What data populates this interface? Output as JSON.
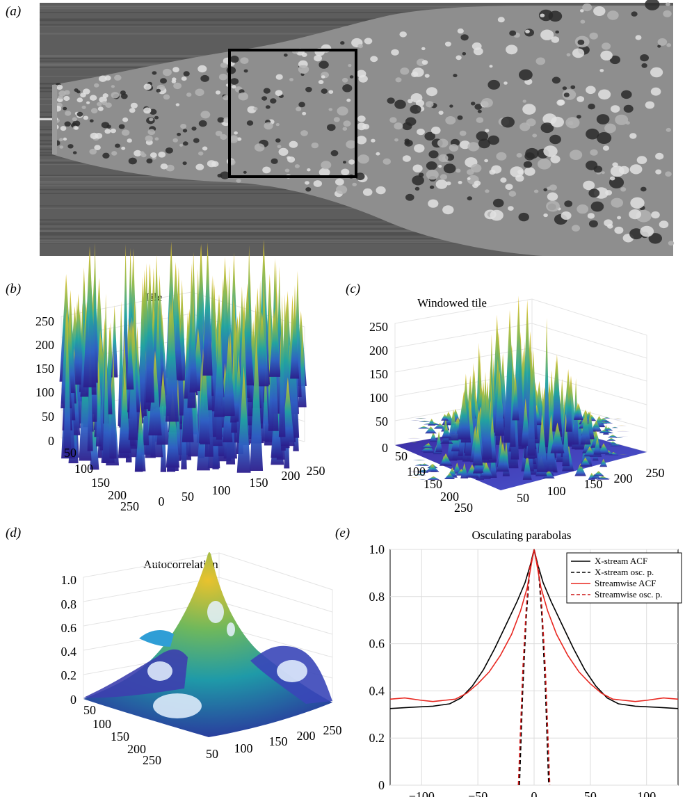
{
  "panels": {
    "a": {
      "label": "(a)"
    },
    "b": {
      "label": "(b)",
      "title": "Tile"
    },
    "c": {
      "label": "(c)",
      "title": "Windowed tile"
    },
    "d": {
      "label": "(d)",
      "title": "Autocorrelation"
    },
    "e": {
      "label": "(e)",
      "title": "Osculating parabolas"
    }
  },
  "chart_data": [
    {
      "panel": "b",
      "type": "surface",
      "title": "Tile",
      "z_ticks": [
        "0",
        "50",
        "100",
        "150",
        "200",
        "250"
      ],
      "x_ticks": [
        "0",
        "50",
        "100",
        "150",
        "200",
        "250"
      ],
      "y_ticks": [
        "50",
        "100",
        "150",
        "200",
        "250"
      ],
      "zlim": [
        0,
        255
      ]
    },
    {
      "panel": "c",
      "type": "surface",
      "title": "Windowed tile",
      "z_ticks": [
        "0",
        "50",
        "100",
        "150",
        "200",
        "250"
      ],
      "x_ticks": [
        "50",
        "100",
        "150",
        "200",
        "250"
      ],
      "y_ticks": [
        "50",
        "100",
        "150",
        "200",
        "250"
      ],
      "zlim": [
        0,
        255
      ]
    },
    {
      "panel": "d",
      "type": "surface",
      "title": "Autocorrelation",
      "z_ticks": [
        "0",
        "0.2",
        "0.4",
        "0.6",
        "0.8",
        "1.0"
      ],
      "x_ticks": [
        "50",
        "100",
        "150",
        "200",
        "250"
      ],
      "y_ticks": [
        "50",
        "100",
        "150",
        "200",
        "250"
      ],
      "zlim": [
        0,
        1
      ]
    },
    {
      "panel": "e",
      "type": "line",
      "title": "Osculating parabolas",
      "xlim": [
        -128,
        128
      ],
      "ylim": [
        0,
        1
      ],
      "x_ticks": [
        -100,
        -50,
        0,
        50,
        100
      ],
      "x_tick_labels": [
        "−100",
        "−50",
        "0",
        "50",
        "100"
      ],
      "y_ticks": [
        0,
        0.2,
        0.4,
        0.6,
        0.8,
        1.0
      ],
      "y_tick_labels": [
        "0",
        "0.2",
        "0.4",
        "0.6",
        "0.8",
        "1.0"
      ],
      "grid": true,
      "legend_position": "top-right",
      "series": [
        {
          "name": "X-stream ACF",
          "color": "#000000",
          "dash": "solid",
          "x": [
            -128,
            -110,
            -90,
            -75,
            -65,
            -55,
            -45,
            -35,
            -25,
            -15,
            -8,
            -3,
            0,
            3,
            8,
            15,
            25,
            35,
            45,
            55,
            65,
            75,
            90,
            110,
            128
          ],
          "y": [
            0.325,
            0.33,
            0.335,
            0.345,
            0.37,
            0.42,
            0.49,
            0.58,
            0.68,
            0.78,
            0.86,
            0.94,
            1.0,
            0.94,
            0.86,
            0.78,
            0.68,
            0.58,
            0.49,
            0.42,
            0.37,
            0.345,
            0.335,
            0.33,
            0.325
          ]
        },
        {
          "name": "X-stream osc. p.",
          "color": "#000000",
          "dash": "dashed",
          "x": [
            -13,
            -10,
            -7,
            -4,
            0,
            4,
            7,
            10,
            13
          ],
          "y": [
            0.0,
            0.41,
            0.71,
            0.905,
            1.0,
            0.905,
            0.71,
            0.41,
            0.0
          ]
        },
        {
          "name": "Streamwise ACF",
          "color": "#e8261f",
          "dash": "solid",
          "x": [
            -128,
            -115,
            -100,
            -90,
            -80,
            -70,
            -60,
            -50,
            -40,
            -30,
            -20,
            -12,
            -6,
            -2,
            0,
            2,
            6,
            12,
            20,
            30,
            40,
            50,
            60,
            70,
            80,
            90,
            100,
            115,
            128
          ],
          "y": [
            0.365,
            0.37,
            0.36,
            0.355,
            0.36,
            0.365,
            0.39,
            0.43,
            0.48,
            0.55,
            0.64,
            0.74,
            0.84,
            0.95,
            1.0,
            0.95,
            0.84,
            0.74,
            0.64,
            0.55,
            0.48,
            0.43,
            0.39,
            0.365,
            0.36,
            0.355,
            0.36,
            0.37,
            0.365
          ]
        },
        {
          "name": "Streamwise osc. p.",
          "color": "#cc1515",
          "dash": "dashed",
          "x": [
            -14,
            -10,
            -7,
            -4,
            0,
            4,
            7,
            10,
            14
          ],
          "y": [
            0.0,
            0.49,
            0.75,
            0.92,
            1.0,
            0.92,
            0.75,
            0.49,
            0.0
          ]
        }
      ]
    }
  ]
}
